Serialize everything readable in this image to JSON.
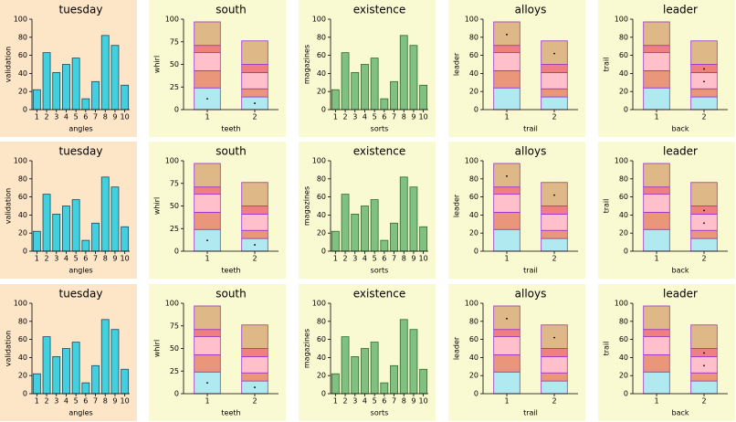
{
  "chart_data": [
    {
      "type": "bar",
      "title": "tuesday",
      "xlabel": "angles",
      "ylabel": "validation",
      "categories": [
        "1",
        "2",
        "3",
        "4",
        "5",
        "6",
        "7",
        "8",
        "9",
        "10"
      ],
      "values": [
        22,
        63,
        41,
        50,
        57,
        12,
        31,
        82,
        71,
        27
      ],
      "color": "#40d0e0",
      "edgecolor": "#1a4a60",
      "background": "#fde5c8",
      "ylim": [
        0,
        100
      ],
      "yticks": [
        0,
        20,
        40,
        60,
        80,
        100
      ]
    },
    {
      "type": "stacked_bar",
      "title": "south",
      "xlabel": "teeth",
      "ylabel": "whirl",
      "categories": [
        "1",
        "2"
      ],
      "series": [
        {
          "color": "#b0eaf0",
          "values": [
            24,
            14
          ]
        },
        {
          "color": "#e9967a",
          "values": [
            19,
            9
          ]
        },
        {
          "color": "#ffc0cb",
          "values": [
            20,
            18
          ]
        },
        {
          "color": "#f08080",
          "values": [
            8,
            9
          ]
        },
        {
          "color": "#deb887",
          "values": [
            26,
            26
          ]
        }
      ],
      "edgecolor": "#9932cc",
      "markers": {
        "x": [
          1,
          2
        ],
        "y": [
          12,
          7
        ]
      },
      "background": "#fafad2",
      "ylim": [
        0,
        100
      ],
      "yticks": [
        0,
        25,
        50,
        75,
        100
      ]
    },
    {
      "type": "bar",
      "title": "existence",
      "xlabel": "sorts",
      "ylabel": "magazines",
      "categories": [
        "1",
        "2",
        "3",
        "4",
        "5",
        "6",
        "7",
        "8",
        "9",
        "10"
      ],
      "values": [
        22,
        63,
        41,
        50,
        57,
        12,
        31,
        82,
        71,
        27
      ],
      "color": "#80c080",
      "edgecolor": "#2e6b2e",
      "background": "#fafad2",
      "ylim": [
        0,
        100
      ],
      "yticks": [
        0,
        20,
        40,
        60,
        80,
        100
      ]
    },
    {
      "type": "stacked_bar",
      "title": "alloys",
      "xlabel": "trail",
      "ylabel": "leader",
      "categories": [
        "1",
        "2"
      ],
      "series": [
        {
          "color": "#b0eaf0",
          "values": [
            24,
            14
          ]
        },
        {
          "color": "#e9967a",
          "values": [
            19,
            9
          ]
        },
        {
          "color": "#ffc0cb",
          "values": [
            20,
            18
          ]
        },
        {
          "color": "#f08080",
          "values": [
            8,
            9
          ]
        },
        {
          "color": "#deb887",
          "values": [
            26,
            26
          ]
        }
      ],
      "edgecolor": "#9932cc",
      "markers": {
        "x": [
          1,
          2
        ],
        "y": [
          83,
          62
        ]
      },
      "background": "#fafad2",
      "ylim": [
        0,
        100
      ],
      "yticks": [
        0,
        20,
        40,
        60,
        80,
        100
      ]
    },
    {
      "type": "stacked_bar",
      "title": "leader",
      "xlabel": "back",
      "ylabel": "trail",
      "categories": [
        "1",
        "2"
      ],
      "series": [
        {
          "color": "#b0eaf0",
          "values": [
            24,
            14
          ]
        },
        {
          "color": "#e9967a",
          "values": [
            19,
            9
          ]
        },
        {
          "color": "#ffc0cb",
          "values": [
            20,
            18
          ]
        },
        {
          "color": "#f08080",
          "values": [
            8,
            9
          ]
        },
        {
          "color": "#deb887",
          "values": [
            26,
            26
          ]
        }
      ],
      "edgecolor": "#9932cc",
      "markers": {
        "x": [
          2,
          2
        ],
        "y": [
          45,
          31
        ]
      },
      "background": "#fafad2",
      "ylim": [
        0,
        100
      ],
      "yticks": [
        0,
        20,
        40,
        60,
        80,
        100
      ]
    },
    {
      "type": "bar",
      "title": "tuesday",
      "xlabel": "angles",
      "ylabel": "validation",
      "categories": [
        "1",
        "2",
        "3",
        "4",
        "5",
        "6",
        "7",
        "8",
        "9",
        "10"
      ],
      "values": [
        22,
        63,
        41,
        50,
        57,
        12,
        31,
        82,
        71,
        27
      ],
      "color": "#40d0e0",
      "edgecolor": "#1a4a60",
      "background": "#fde5c8",
      "ylim": [
        0,
        100
      ],
      "yticks": [
        0,
        20,
        40,
        60,
        80,
        100
      ]
    },
    {
      "type": "stacked_bar",
      "title": "south",
      "xlabel": "teeth",
      "ylabel": "whirl",
      "categories": [
        "1",
        "2"
      ],
      "series": [
        {
          "color": "#b0eaf0",
          "values": [
            24,
            14
          ]
        },
        {
          "color": "#e9967a",
          "values": [
            19,
            9
          ]
        },
        {
          "color": "#ffc0cb",
          "values": [
            20,
            18
          ]
        },
        {
          "color": "#f08080",
          "values": [
            8,
            9
          ]
        },
        {
          "color": "#deb887",
          "values": [
            26,
            26
          ]
        }
      ],
      "edgecolor": "#9932cc",
      "markers": {
        "x": [
          1,
          2
        ],
        "y": [
          12,
          7
        ]
      },
      "background": "#fafad2",
      "ylim": [
        0,
        100
      ],
      "yticks": [
        0,
        25,
        50,
        75,
        100
      ]
    },
    {
      "type": "bar",
      "title": "existence",
      "xlabel": "sorts",
      "ylabel": "magazines",
      "categories": [
        "1",
        "2",
        "3",
        "4",
        "5",
        "6",
        "7",
        "8",
        "9",
        "10"
      ],
      "values": [
        22,
        63,
        41,
        50,
        57,
        12,
        31,
        82,
        71,
        27
      ],
      "color": "#80c080",
      "edgecolor": "#2e6b2e",
      "background": "#fafad2",
      "ylim": [
        0,
        100
      ],
      "yticks": [
        0,
        20,
        40,
        60,
        80,
        100
      ]
    },
    {
      "type": "stacked_bar",
      "title": "alloys",
      "xlabel": "trail",
      "ylabel": "leader",
      "categories": [
        "1",
        "2"
      ],
      "series": [
        {
          "color": "#b0eaf0",
          "values": [
            24,
            14
          ]
        },
        {
          "color": "#e9967a",
          "values": [
            19,
            9
          ]
        },
        {
          "color": "#ffc0cb",
          "values": [
            20,
            18
          ]
        },
        {
          "color": "#f08080",
          "values": [
            8,
            9
          ]
        },
        {
          "color": "#deb887",
          "values": [
            26,
            26
          ]
        }
      ],
      "edgecolor": "#9932cc",
      "markers": {
        "x": [
          1,
          2
        ],
        "y": [
          83,
          62
        ]
      },
      "background": "#fafad2",
      "ylim": [
        0,
        100
      ],
      "yticks": [
        0,
        20,
        40,
        60,
        80,
        100
      ]
    },
    {
      "type": "stacked_bar",
      "title": "leader",
      "xlabel": "back",
      "ylabel": "trail",
      "categories": [
        "1",
        "2"
      ],
      "series": [
        {
          "color": "#b0eaf0",
          "values": [
            24,
            14
          ]
        },
        {
          "color": "#e9967a",
          "values": [
            19,
            9
          ]
        },
        {
          "color": "#ffc0cb",
          "values": [
            20,
            18
          ]
        },
        {
          "color": "#f08080",
          "values": [
            8,
            9
          ]
        },
        {
          "color": "#deb887",
          "values": [
            26,
            26
          ]
        }
      ],
      "edgecolor": "#9932cc",
      "markers": {
        "x": [
          2,
          2
        ],
        "y": [
          45,
          31
        ]
      },
      "background": "#fafad2",
      "ylim": [
        0,
        100
      ],
      "yticks": [
        0,
        20,
        40,
        60,
        80,
        100
      ]
    },
    {
      "type": "bar",
      "title": "tuesday",
      "xlabel": "angles",
      "ylabel": "validation",
      "categories": [
        "1",
        "2",
        "3",
        "4",
        "5",
        "6",
        "7",
        "8",
        "9",
        "10"
      ],
      "values": [
        22,
        63,
        41,
        50,
        57,
        12,
        31,
        82,
        71,
        27
      ],
      "color": "#40d0e0",
      "edgecolor": "#1a4a60",
      "background": "#fde5c8",
      "ylim": [
        0,
        100
      ],
      "yticks": [
        0,
        20,
        40,
        60,
        80,
        100
      ]
    },
    {
      "type": "stacked_bar",
      "title": "south",
      "xlabel": "teeth",
      "ylabel": "whirl",
      "categories": [
        "1",
        "2"
      ],
      "series": [
        {
          "color": "#b0eaf0",
          "values": [
            24,
            14
          ]
        },
        {
          "color": "#e9967a",
          "values": [
            19,
            9
          ]
        },
        {
          "color": "#ffc0cb",
          "values": [
            20,
            18
          ]
        },
        {
          "color": "#f08080",
          "values": [
            8,
            9
          ]
        },
        {
          "color": "#deb887",
          "values": [
            26,
            26
          ]
        }
      ],
      "edgecolor": "#9932cc",
      "markers": {
        "x": [
          1,
          2
        ],
        "y": [
          12,
          7
        ]
      },
      "background": "#fafad2",
      "ylim": [
        0,
        100
      ],
      "yticks": [
        0,
        25,
        50,
        75,
        100
      ]
    },
    {
      "type": "bar",
      "title": "existence",
      "xlabel": "sorts",
      "ylabel": "magazines",
      "categories": [
        "1",
        "2",
        "3",
        "4",
        "5",
        "6",
        "7",
        "8",
        "9",
        "10"
      ],
      "values": [
        22,
        63,
        41,
        50,
        57,
        12,
        31,
        82,
        71,
        27
      ],
      "color": "#80c080",
      "edgecolor": "#2e6b2e",
      "background": "#fafad2",
      "ylim": [
        0,
        100
      ],
      "yticks": [
        0,
        20,
        40,
        60,
        80,
        100
      ]
    },
    {
      "type": "stacked_bar",
      "title": "alloys",
      "xlabel": "trail",
      "ylabel": "leader",
      "categories": [
        "1",
        "2"
      ],
      "series": [
        {
          "color": "#b0eaf0",
          "values": [
            24,
            14
          ]
        },
        {
          "color": "#e9967a",
          "values": [
            19,
            9
          ]
        },
        {
          "color": "#ffc0cb",
          "values": [
            20,
            18
          ]
        },
        {
          "color": "#f08080",
          "values": [
            8,
            9
          ]
        },
        {
          "color": "#deb887",
          "values": [
            26,
            26
          ]
        }
      ],
      "edgecolor": "#9932cc",
      "markers": {
        "x": [
          1,
          2
        ],
        "y": [
          83,
          62
        ]
      },
      "background": "#fafad2",
      "ylim": [
        0,
        100
      ],
      "yticks": [
        0,
        20,
        40,
        60,
        80,
        100
      ]
    },
    {
      "type": "stacked_bar",
      "title": "leader",
      "xlabel": "back",
      "ylabel": "trail",
      "categories": [
        "1",
        "2"
      ],
      "series": [
        {
          "color": "#b0eaf0",
          "values": [
            24,
            14
          ]
        },
        {
          "color": "#e9967a",
          "values": [
            19,
            9
          ]
        },
        {
          "color": "#ffc0cb",
          "values": [
            20,
            18
          ]
        },
        {
          "color": "#f08080",
          "values": [
            8,
            9
          ]
        },
        {
          "color": "#deb887",
          "values": [
            26,
            26
          ]
        }
      ],
      "edgecolor": "#9932cc",
      "markers": {
        "x": [
          2,
          2
        ],
        "y": [
          45,
          31
        ]
      },
      "background": "#fafad2",
      "ylim": [
        0,
        100
      ],
      "yticks": [
        0,
        20,
        40,
        60,
        80,
        100
      ]
    }
  ]
}
